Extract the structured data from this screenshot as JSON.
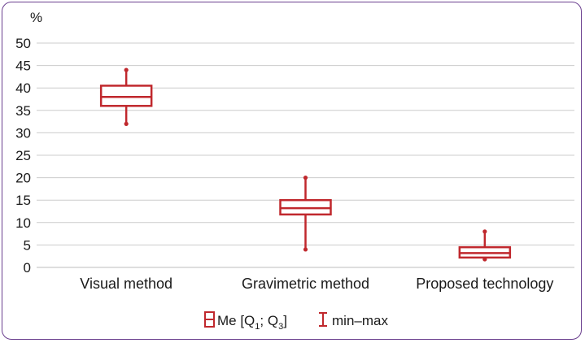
{
  "chart_data": {
    "type": "boxplot",
    "ylabel": "%",
    "ylim": [
      0,
      50
    ],
    "yticks": [
      0,
      5,
      10,
      15,
      20,
      25,
      30,
      35,
      40,
      45,
      50
    ],
    "grid": true,
    "categories": [
      "Visual method",
      "Gravimetric method",
      "Proposed technology"
    ],
    "boxes": [
      {
        "min": 32,
        "q1": 36,
        "median": 38,
        "q3": 40.5,
        "max": 44
      },
      {
        "min": 4,
        "q1": 11.8,
        "median": 13.2,
        "q3": 15,
        "max": 20
      },
      {
        "min": 1.8,
        "q1": 2.2,
        "median": 3.2,
        "q3": 4.5,
        "max": 8
      }
    ],
    "legend": {
      "placement": "bottom",
      "box_label_main": "Me [Q",
      "box_label_sub1": "1",
      "box_label_mid": "; Q",
      "box_label_sub2": "3",
      "box_label_end": "]",
      "whisker_label": "min–max"
    },
    "colors": {
      "box": "#c0282d",
      "grid": "#cccccc",
      "frame": "#6a3e8e"
    }
  }
}
